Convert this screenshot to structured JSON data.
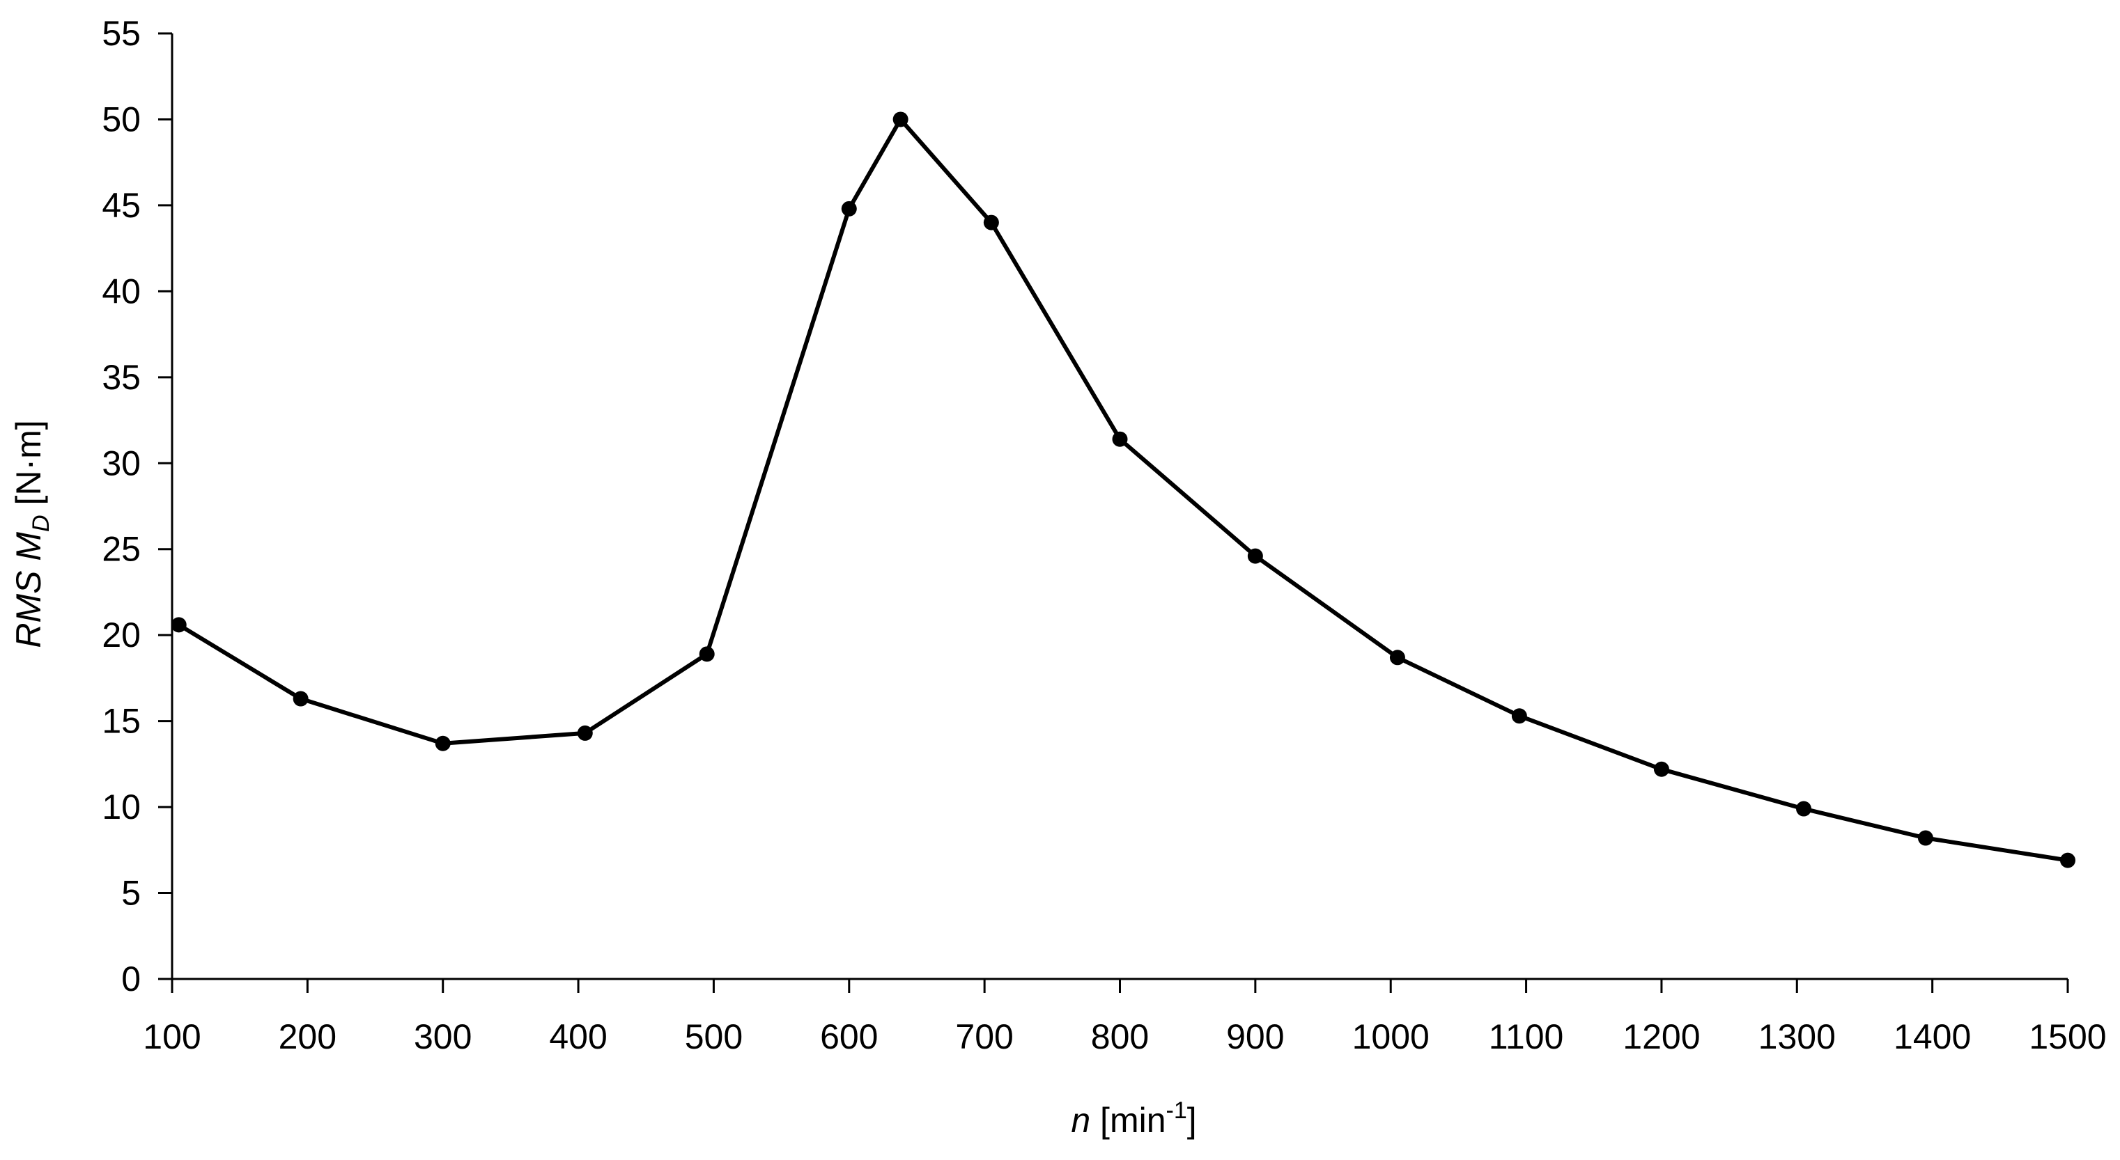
{
  "chart_data": {
    "type": "line",
    "title": "",
    "xlabel": {
      "italic": "n",
      "text": " [min",
      "sup": "-1",
      "end": "]"
    },
    "ylabel": {
      "italic": "RMS M",
      "sub": "D",
      "text": " [N·m]"
    },
    "xlim": [
      100,
      1500
    ],
    "ylim": [
      0,
      55
    ],
    "xticks": [
      100,
      200,
      300,
      400,
      500,
      600,
      700,
      800,
      900,
      1000,
      1100,
      1200,
      1300,
      1400,
      1500
    ],
    "yticks": [
      0,
      5,
      10,
      15,
      20,
      25,
      30,
      35,
      40,
      45,
      50,
      55
    ],
    "xtick_labels": [
      "100",
      "200",
      "300",
      "400",
      "500",
      "600",
      "700",
      "800",
      "900",
      "1000",
      "1100",
      "1200",
      "1300",
      "1400",
      "1500"
    ],
    "ytick_labels": [
      "0",
      "5",
      "10",
      "15",
      "20",
      "25",
      "30",
      "35",
      "40",
      "45",
      "50",
      "55"
    ],
    "grid": false,
    "series": [
      {
        "color": "#000000",
        "marker": "circle",
        "x": [
          105,
          195,
          300,
          405,
          495,
          600,
          638,
          705,
          800,
          900,
          1005,
          1095,
          1200,
          1305,
          1395,
          1500
        ],
        "y": [
          20.6,
          16.3,
          13.7,
          14.3,
          18.9,
          44.8,
          50.0,
          44.0,
          31.4,
          24.6,
          18.7,
          15.3,
          12.2,
          9.9,
          8.2,
          6.9
        ]
      }
    ]
  }
}
